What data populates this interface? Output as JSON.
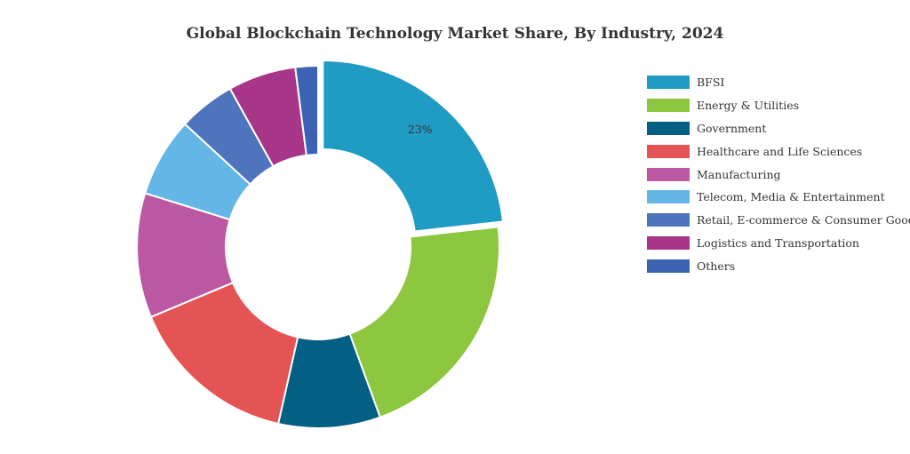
{
  "chart_data": {
    "type": "pie",
    "donut": true,
    "title": "Global Blockchain Technology Market Share, By Industry, 2024",
    "categories": [
      "BFSI",
      "Energy & Utilities",
      "Government",
      "Healthcare and Life Sciences",
      "Manufacturing",
      "Telecom, Media & Entertainment",
      "Retail, E-commerce & Consumer Goods",
      "Logistics and Transportation",
      "Others"
    ],
    "values": [
      23,
      21,
      9,
      15,
      11,
      7,
      5,
      6,
      2
    ],
    "data_labels": [
      "23%",
      "",
      "",
      "",
      "",
      "",
      "",
      "",
      ""
    ],
    "colors": [
      "#1f9bc4",
      "#8dc63f",
      "#035f84",
      "#e55454",
      "#bc57a1",
      "#64b6e6",
      "#4d74bc",
      "#a83688",
      "#3c63b3"
    ],
    "exploded_index": 0,
    "legend_position": "right"
  }
}
